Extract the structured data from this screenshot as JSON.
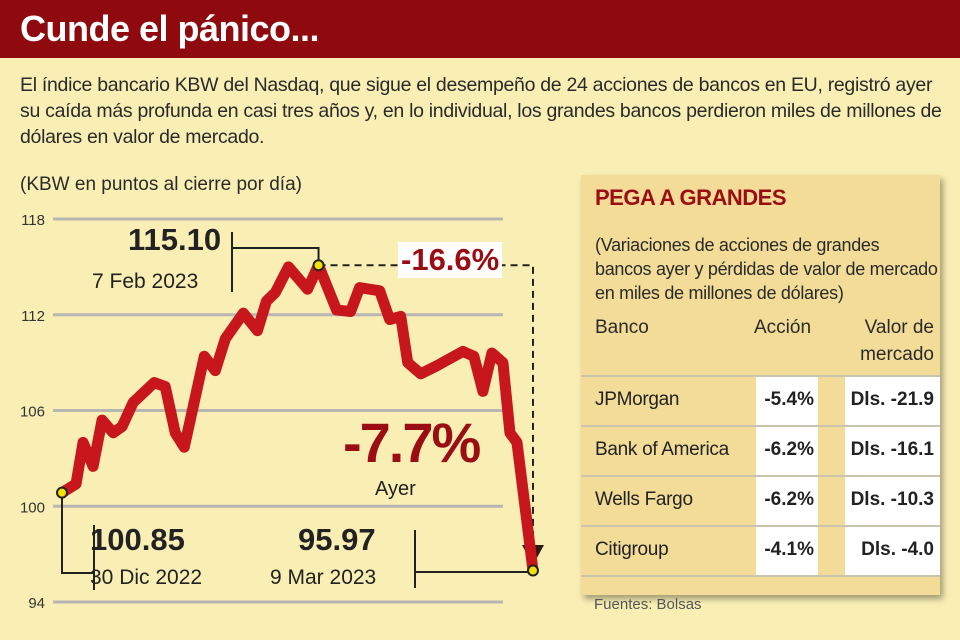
{
  "header": {
    "title": "Cunde el pánico..."
  },
  "intro": "El índice bancario KBW del Nasdaq, que sigue el desempeño de 24 acciones de bancos en EU, registró ayer su caída más profunda en casi tres años y, en lo individual, los grandes bancos perdieron miles de millones de dólares en valor de mercado.",
  "chart_data": {
    "type": "line",
    "title": "(KBW en puntos al cierre por día)",
    "ylabel": "KBW puntos",
    "ylim": [
      94,
      118
    ],
    "yticks": [
      "118",
      "112",
      "106",
      "100",
      "94"
    ],
    "grid": true,
    "line_color": "#c8161d",
    "series": [
      {
        "name": "KBW",
        "x": [
          0,
          1.4,
          2.1,
          3.1,
          4,
          5.1,
          6,
          7.1,
          9.2,
          10.3,
          11.3,
          12.2,
          14.2,
          15.3,
          16.3,
          18.1,
          19.5,
          20.4,
          21.3,
          22.6,
          24.5,
          25.6,
          27.4,
          28.8,
          29.7,
          31.7,
          32.7,
          33.8,
          34.5,
          35.8,
          37.4,
          40,
          41.1,
          42,
          42.9,
          44,
          44.7,
          45.4,
          47
        ],
        "y": [
          100.85,
          101.4,
          104,
          102.5,
          105.4,
          104.6,
          105,
          106.5,
          107.75,
          107.5,
          104.6,
          103.7,
          109.4,
          108.5,
          110.5,
          112.1,
          111,
          112.85,
          113.4,
          115,
          113.6,
          115.1,
          112.3,
          112.2,
          113.7,
          113.5,
          111.7,
          111.9,
          109,
          108.3,
          108.8,
          109.7,
          109.4,
          107.2,
          109.6,
          109,
          104.6,
          104,
          95.97
        ]
      }
    ],
    "annotations": {
      "start": {
        "value": "100.85",
        "date": "30 Dic 2022",
        "x": 0,
        "y": 100.85
      },
      "peak": {
        "value": "115.10",
        "date": "7 Feb 2023",
        "x": 25.6,
        "y": 115.1
      },
      "end": {
        "value": "95.97",
        "date": "9 Mar 2023",
        "x": 47,
        "y": 95.97
      },
      "drop_total": "-16.6%",
      "drop_day": "-7.7%",
      "drop_day_label": "Ayer"
    }
  },
  "panel": {
    "title": "PEGA A GRANDES",
    "subtitle": "(Variaciones de acciones de grandes bancos ayer y pérdidas de valor de mercado en miles de millones de dólares)",
    "headers": {
      "bank": "Banco",
      "action": "Acción",
      "value1": "Valor de",
      "value2": "mercado"
    },
    "rows": [
      {
        "bank": "JPMorgan",
        "action": "-5.4%",
        "value": "Dls. -21.9"
      },
      {
        "bank": "Bank of America",
        "action": "-6.2%",
        "value": "Dls. -16.1"
      },
      {
        "bank": "Wells Fargo",
        "action": "-6.2%",
        "value": "Dls. -10.3"
      },
      {
        "bank": "Citigroup",
        "action": "-4.1%",
        "value": "Dls. -4.0"
      }
    ]
  },
  "source": "Fuentes: Bolsas"
}
